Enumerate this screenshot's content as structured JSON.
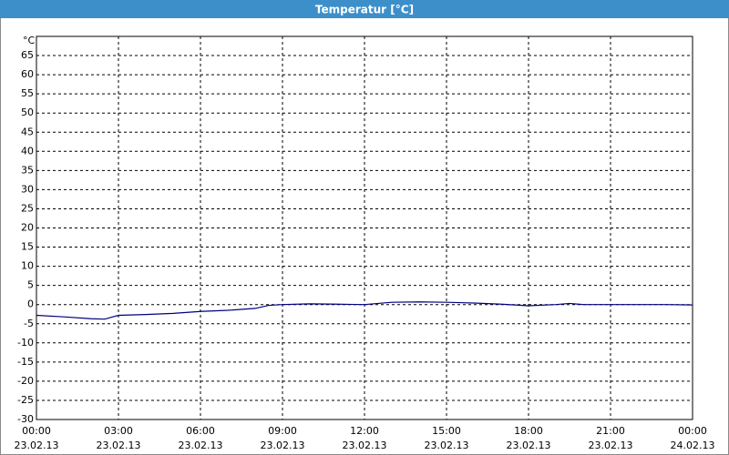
{
  "chart_data": {
    "type": "line",
    "title": "Temperatur [°C]",
    "y_unit": "°C",
    "x": [
      0,
      1,
      2,
      2.5,
      3,
      4,
      5,
      6,
      7,
      8,
      8.5,
      9,
      10,
      11,
      12,
      13,
      14,
      15,
      16,
      17,
      18,
      19,
      19.5,
      20,
      21,
      22,
      23,
      24
    ],
    "series": [
      {
        "name": "Temperatur",
        "color": "#000080",
        "values": [
          -2.8,
          -3.2,
          -3.7,
          -3.8,
          -2.8,
          -2.6,
          -2.3,
          -1.8,
          -1.5,
          -1.0,
          -0.2,
          0,
          0.2,
          0.1,
          0,
          0.6,
          0.7,
          0.6,
          0.4,
          0.1,
          -0.3,
          0,
          0.3,
          0,
          0,
          0,
          0,
          -0.1
        ]
      }
    ],
    "xlim": [
      0,
      24
    ],
    "xticks": [
      {
        "value": 0,
        "label": "00:00"
      },
      {
        "value": 3,
        "label": "03:00"
      },
      {
        "value": 6,
        "label": "06:00"
      },
      {
        "value": 9,
        "label": "09:00"
      },
      {
        "value": 12,
        "label": "12:00"
      },
      {
        "value": 15,
        "label": "15:00"
      },
      {
        "value": 18,
        "label": "18:00"
      },
      {
        "value": 21,
        "label": "21:00"
      },
      {
        "value": 24,
        "label": "00:00"
      }
    ],
    "xtick_dates": [
      "23.02.13",
      "23.02.13",
      "23.02.13",
      "23.02.13",
      "23.02.13",
      "23.02.13",
      "23.02.13",
      "23.02.13",
      "24.02.13"
    ],
    "ylim": [
      -30,
      70
    ],
    "yticks": [
      -30,
      -25,
      -20,
      -15,
      -10,
      -5,
      0,
      5,
      10,
      15,
      20,
      25,
      30,
      35,
      40,
      45,
      50,
      55,
      60,
      65
    ],
    "grid": true
  }
}
